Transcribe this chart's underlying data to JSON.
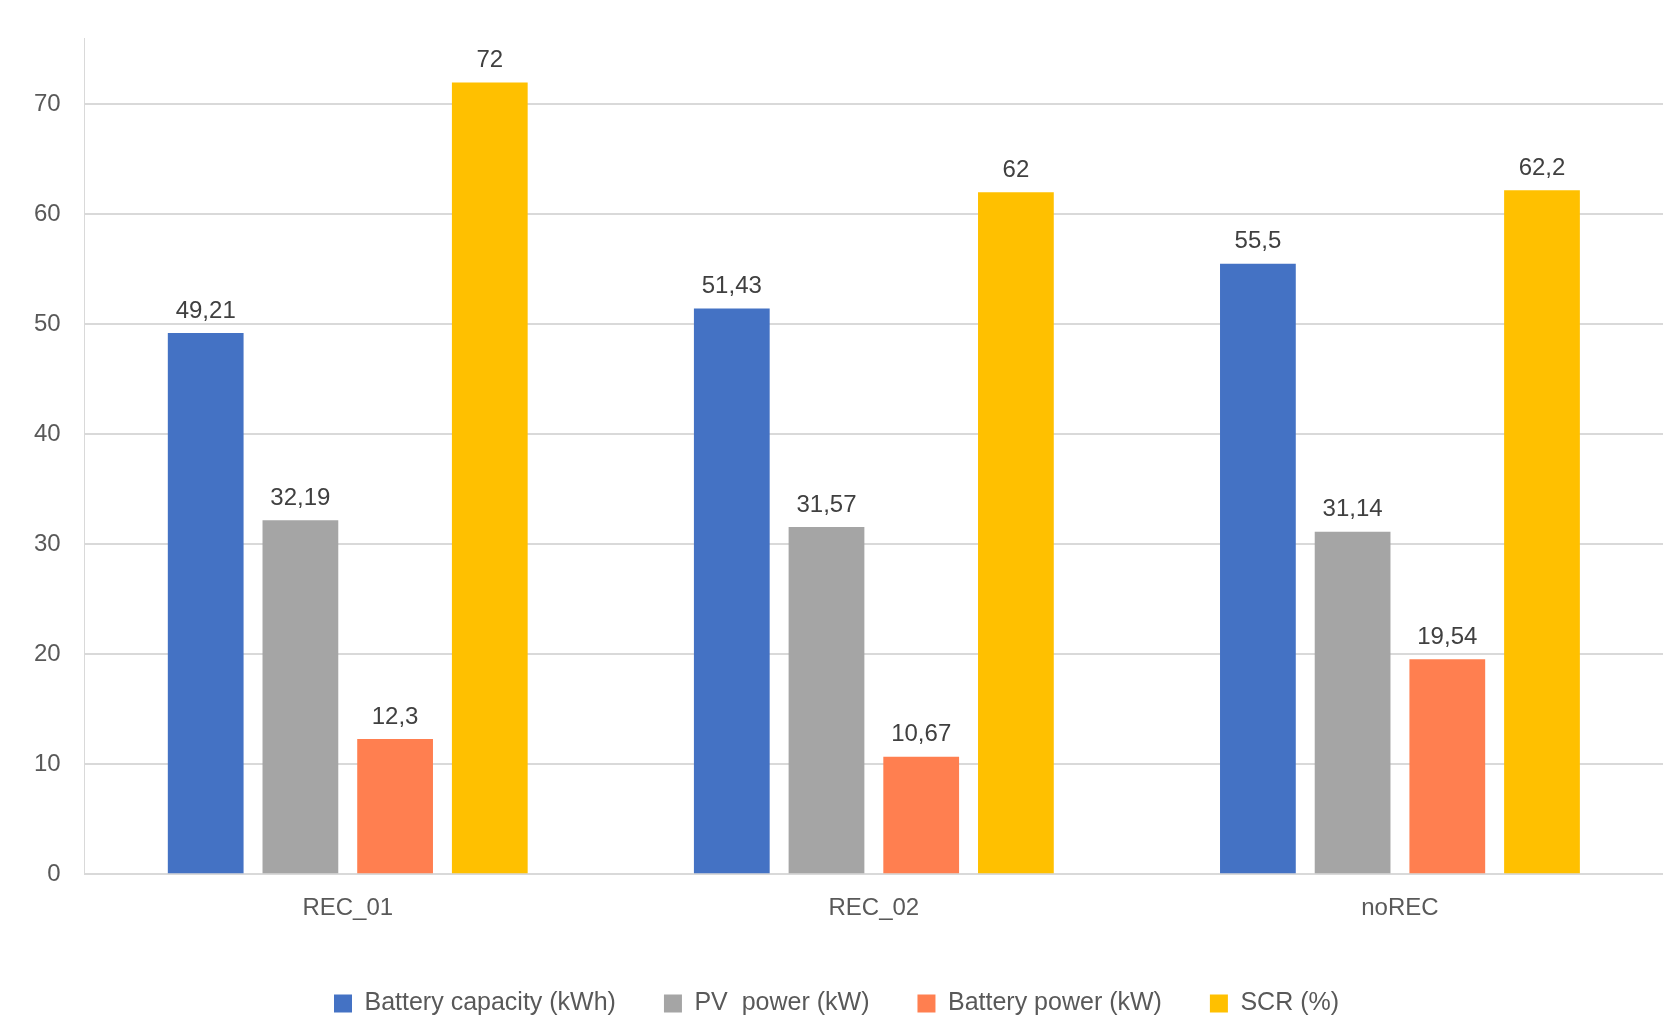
{
  "chart_data": {
    "type": "bar",
    "categories": [
      "REC_01",
      "REC_02",
      "noREC"
    ],
    "series": [
      {
        "name": "Battery capacity (kWh)",
        "color": "#4472c4",
        "values": [
          49.21,
          51.43,
          55.5
        ],
        "value_labels": [
          "49,21",
          "51,43",
          "55,5"
        ]
      },
      {
        "name": "PV  power (kW)",
        "color": "#a5a5a5",
        "values": [
          32.19,
          31.57,
          31.14
        ],
        "value_labels": [
          "32,19",
          "31,57",
          "31,14"
        ]
      },
      {
        "name": "Battery power (kW)",
        "color": "#ff7f50",
        "values": [
          12.3,
          10.67,
          19.54
        ],
        "value_labels": [
          "12,3",
          "10,67",
          "19,54"
        ]
      },
      {
        "name": "SCR (%)",
        "color": "#ffc000",
        "values": [
          72,
          62,
          62.2
        ],
        "value_labels": [
          "72",
          "62",
          "62,2"
        ]
      }
    ],
    "ylim": [
      0,
      76
    ],
    "yticks": [
      0,
      10,
      20,
      30,
      40,
      50,
      60,
      70
    ],
    "grid": "y",
    "legend": "bottom"
  }
}
